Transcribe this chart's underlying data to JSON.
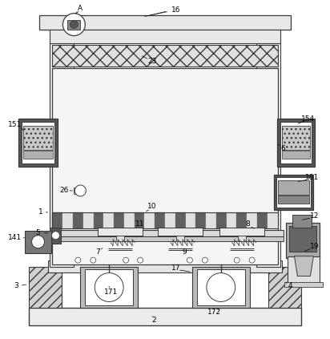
{
  "bg_color": "#ffffff",
  "lc": "#3a3a3a",
  "lw": 0.7,
  "figsize": [
    4.12,
    4.23
  ],
  "dpi": 100
}
